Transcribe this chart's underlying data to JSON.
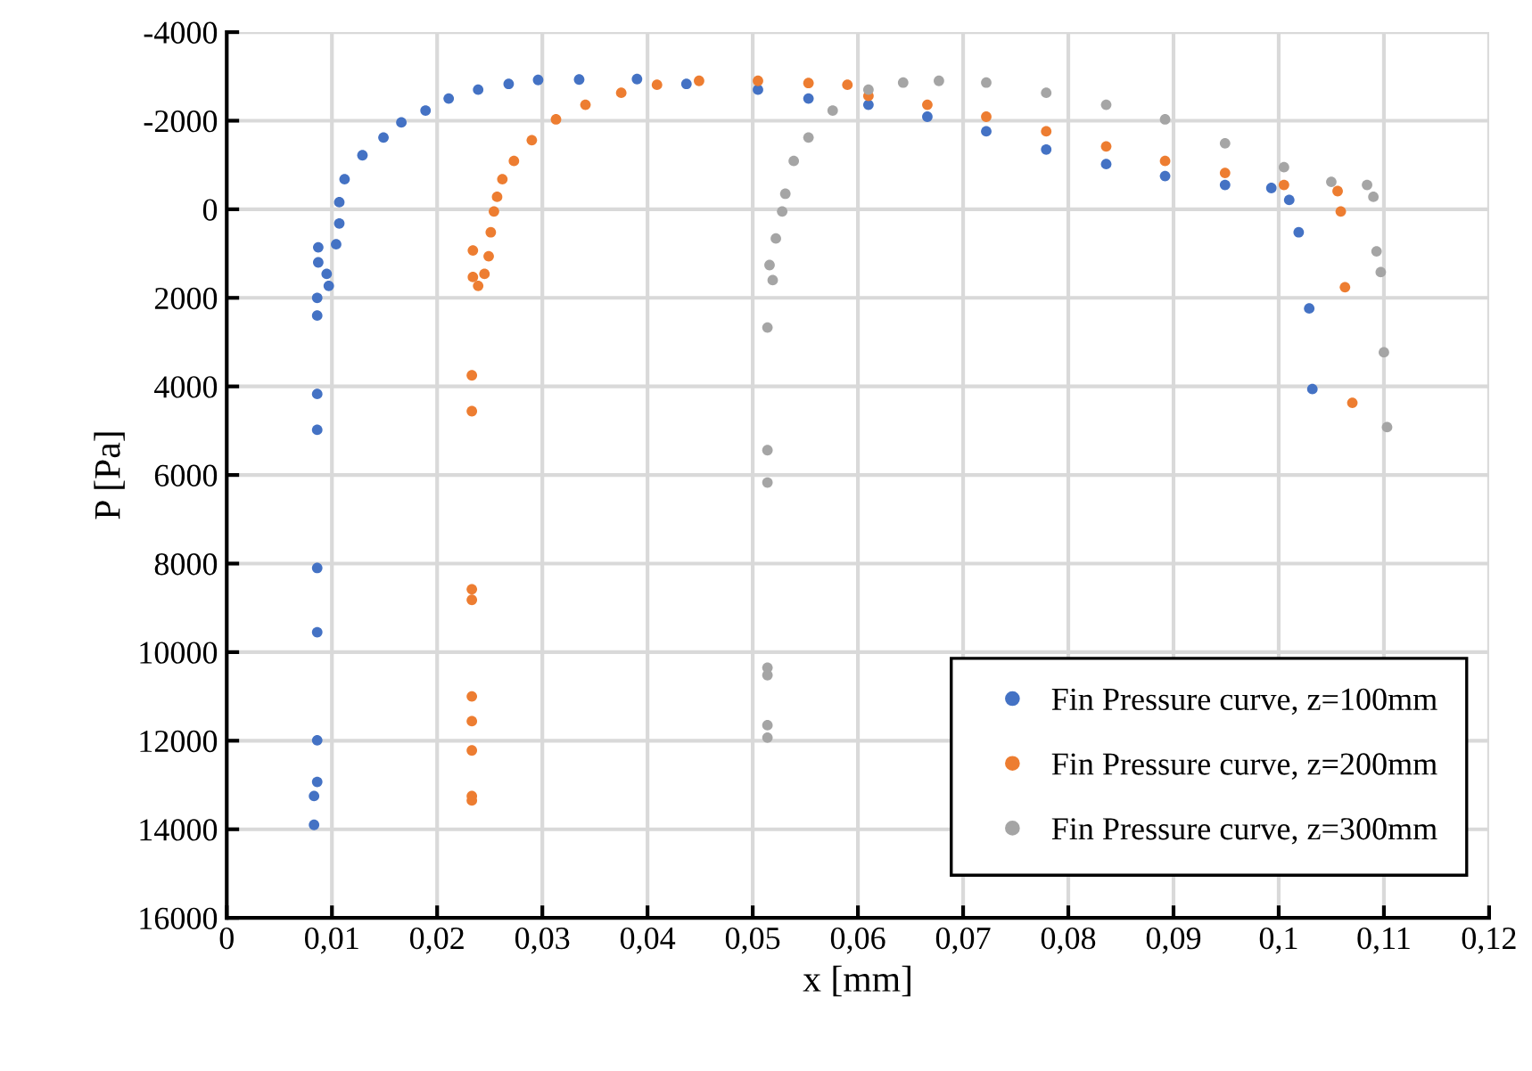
{
  "chart_data": {
    "type": "scatter",
    "xlabel": "x [mm]",
    "ylabel": "P [Pa]",
    "xlim": [
      0,
      0.12
    ],
    "ylim": [
      16000,
      -4000
    ],
    "xticks": [
      0,
      {
        "value": 0.01,
        "label": "0,01"
      },
      {
        "value": 0.02,
        "label": "0,02"
      },
      {
        "value": 0.03,
        "label": "0,03"
      },
      {
        "value": 0.04,
        "label": "0,04"
      },
      {
        "value": 0.05,
        "label": "0,05"
      },
      {
        "value": 0.06,
        "label": "0,06"
      },
      {
        "value": 0.07,
        "label": "0,07"
      },
      {
        "value": 0.08,
        "label": "0,08"
      },
      {
        "value": 0.09,
        "label": "0,09"
      },
      {
        "value": 0.1,
        "label": "0,1"
      },
      {
        "value": 0.11,
        "label": "0,11"
      },
      {
        "value": 0.12,
        "label": "0,12"
      }
    ],
    "yticks": [
      -4000,
      -2000,
      0,
      2000,
      4000,
      6000,
      8000,
      10000,
      12000,
      14000,
      16000
    ],
    "grid": true,
    "legend": "bottom right",
    "marker": "circle",
    "series": [
      {
        "name": "Fin Pressure curve, z=100mm",
        "color": "#4472c4",
        "x": [
          0.0083,
          0.0083,
          0.0086,
          0.0086,
          0.0086,
          0.0086,
          0.0086,
          0.0086,
          0.0086,
          0.0086,
          0.0087,
          0.0087,
          0.0095,
          0.0097,
          0.0104,
          0.0107,
          0.0107,
          0.0112,
          0.0129,
          0.0149,
          0.0166,
          0.0189,
          0.0211,
          0.0239,
          0.0268,
          0.0296,
          0.0335,
          0.039,
          0.0437,
          0.0505,
          0.0553,
          0.061,
          0.0666,
          0.0722,
          0.0779,
          0.0836,
          0.0892,
          0.0949,
          0.0993,
          0.101,
          0.1019,
          0.1029,
          0.1032
        ],
        "values": [
          13900,
          13250,
          12930,
          11990,
          9550,
          8100,
          4980,
          4170,
          2400,
          2000,
          1200,
          860,
          1460,
          1730,
          790,
          320,
          -160,
          -680,
          -1220,
          -1620,
          -1960,
          -2230,
          -2500,
          -2700,
          -2830,
          -2920,
          -2930,
          -2940,
          -2830,
          -2700,
          -2500,
          -2360,
          -2090,
          -1760,
          -1350,
          -1020,
          -750,
          -550,
          -480,
          -210,
          520,
          2240,
          4060
        ]
      },
      {
        "name": "Fin Pressure curve, z=200mm",
        "color": "#ed7d31",
        "x": [
          0.0233,
          0.0233,
          0.0233,
          0.0233,
          0.0233,
          0.0233,
          0.0233,
          0.0233,
          0.0233,
          0.0234,
          0.0234,
          0.0239,
          0.0245,
          0.0249,
          0.0251,
          0.0254,
          0.0257,
          0.0262,
          0.0273,
          0.029,
          0.0313,
          0.0341,
          0.0375,
          0.0409,
          0.0449,
          0.0505,
          0.0553,
          0.059,
          0.061,
          0.0666,
          0.0722,
          0.0779,
          0.0836,
          0.0892,
          0.0949,
          0.1005,
          0.1056,
          0.1059,
          0.1063,
          0.107
        ],
        "values": [
          13350,
          13250,
          12220,
          11560,
          11000,
          8820,
          8580,
          4560,
          3750,
          1530,
          930,
          1730,
          1460,
          1060,
          520,
          50,
          -280,
          -680,
          -1090,
          -1560,
          -2030,
          -2360,
          -2630,
          -2810,
          -2900,
          -2900,
          -2850,
          -2810,
          -2560,
          -2360,
          -2090,
          -1760,
          -1420,
          -1090,
          -820,
          -550,
          -410,
          50,
          1760,
          4370
        ]
      },
      {
        "name": "Fin Pressure curve, z=300mm",
        "color": "#a5a5a5",
        "x": [
          0.0514,
          0.0514,
          0.0514,
          0.0514,
          0.0514,
          0.0514,
          0.0514,
          0.0516,
          0.0519,
          0.0522,
          0.0528,
          0.0531,
          0.0539,
          0.0553,
          0.0576,
          0.061,
          0.0643,
          0.0677,
          0.0722,
          0.0779,
          0.0836,
          0.0892,
          0.0949,
          0.1005,
          0.105,
          0.1084,
          0.109,
          0.1093,
          0.1097,
          0.11,
          0.1103
        ],
        "values": [
          11930,
          11650,
          10520,
          10350,
          6170,
          5440,
          2670,
          1260,
          1600,
          660,
          50,
          -350,
          -1090,
          -1620,
          -2230,
          -2700,
          -2860,
          -2900,
          -2860,
          -2630,
          -2360,
          -2030,
          -1490,
          -950,
          -620,
          -550,
          -280,
          950,
          1420,
          3230,
          4920
        ]
      }
    ]
  }
}
